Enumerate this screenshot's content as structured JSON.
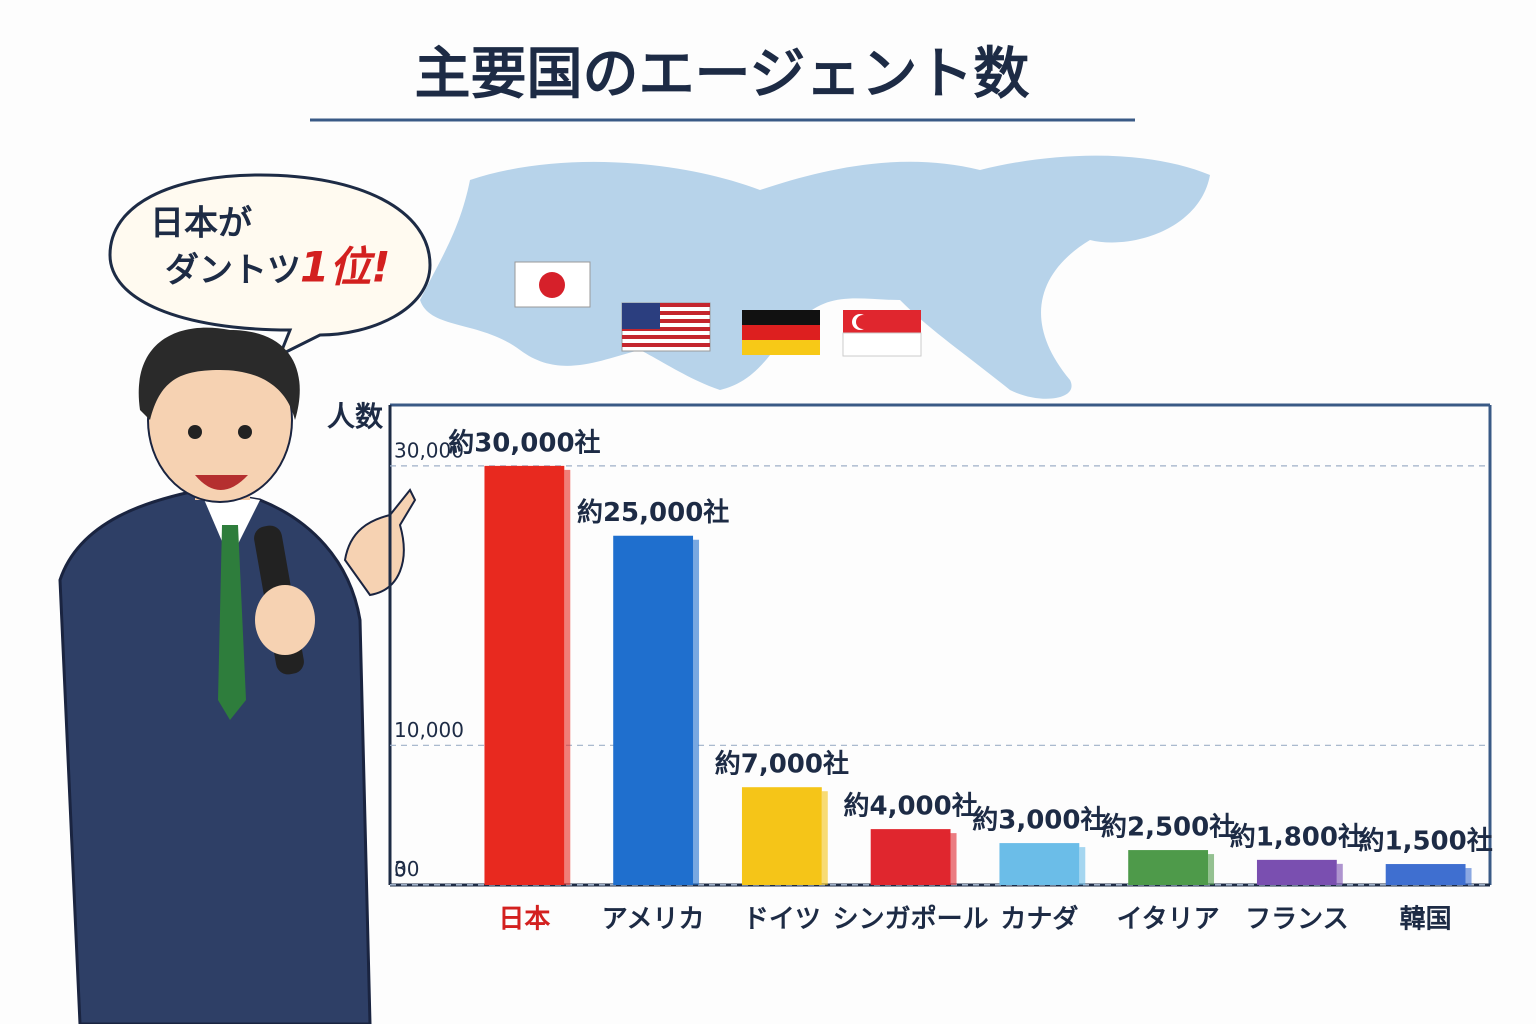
{
  "chart_data": {
    "type": "bar",
    "title": "主要国のエージェント数",
    "y_label": "人数",
    "annotations": [
      "日本が",
      "ダントツ",
      "1位!"
    ],
    "categories": [
      "日本",
      "アメリカ",
      "ドイツ",
      "シンガポール",
      "カナダ",
      "イタリア",
      "フランス",
      "韓国"
    ],
    "values": [
      30000,
      25000,
      7000,
      4000,
      3000,
      2500,
      1800,
      1500
    ],
    "value_labels": [
      "約30,000社",
      "約25,000社",
      "約7,000社",
      "約4,000社",
      "約3,000社",
      "約2,500社",
      "約1,800社",
      "約1,500社"
    ],
    "colors": [
      "#e8291f",
      "#1f6fce",
      "#f5c518",
      "#e0262e",
      "#6bbde8",
      "#4e9a4a",
      "#7a4fb0",
      "#3f6fd0"
    ],
    "ylim": [
      0,
      34000
    ],
    "yticks": [
      0,
      {
        "value": 10000,
        "label": "10,000"
      },
      {
        "value": 30000,
        "label": "30,000"
      },
      30
    ],
    "grid": true
  }
}
